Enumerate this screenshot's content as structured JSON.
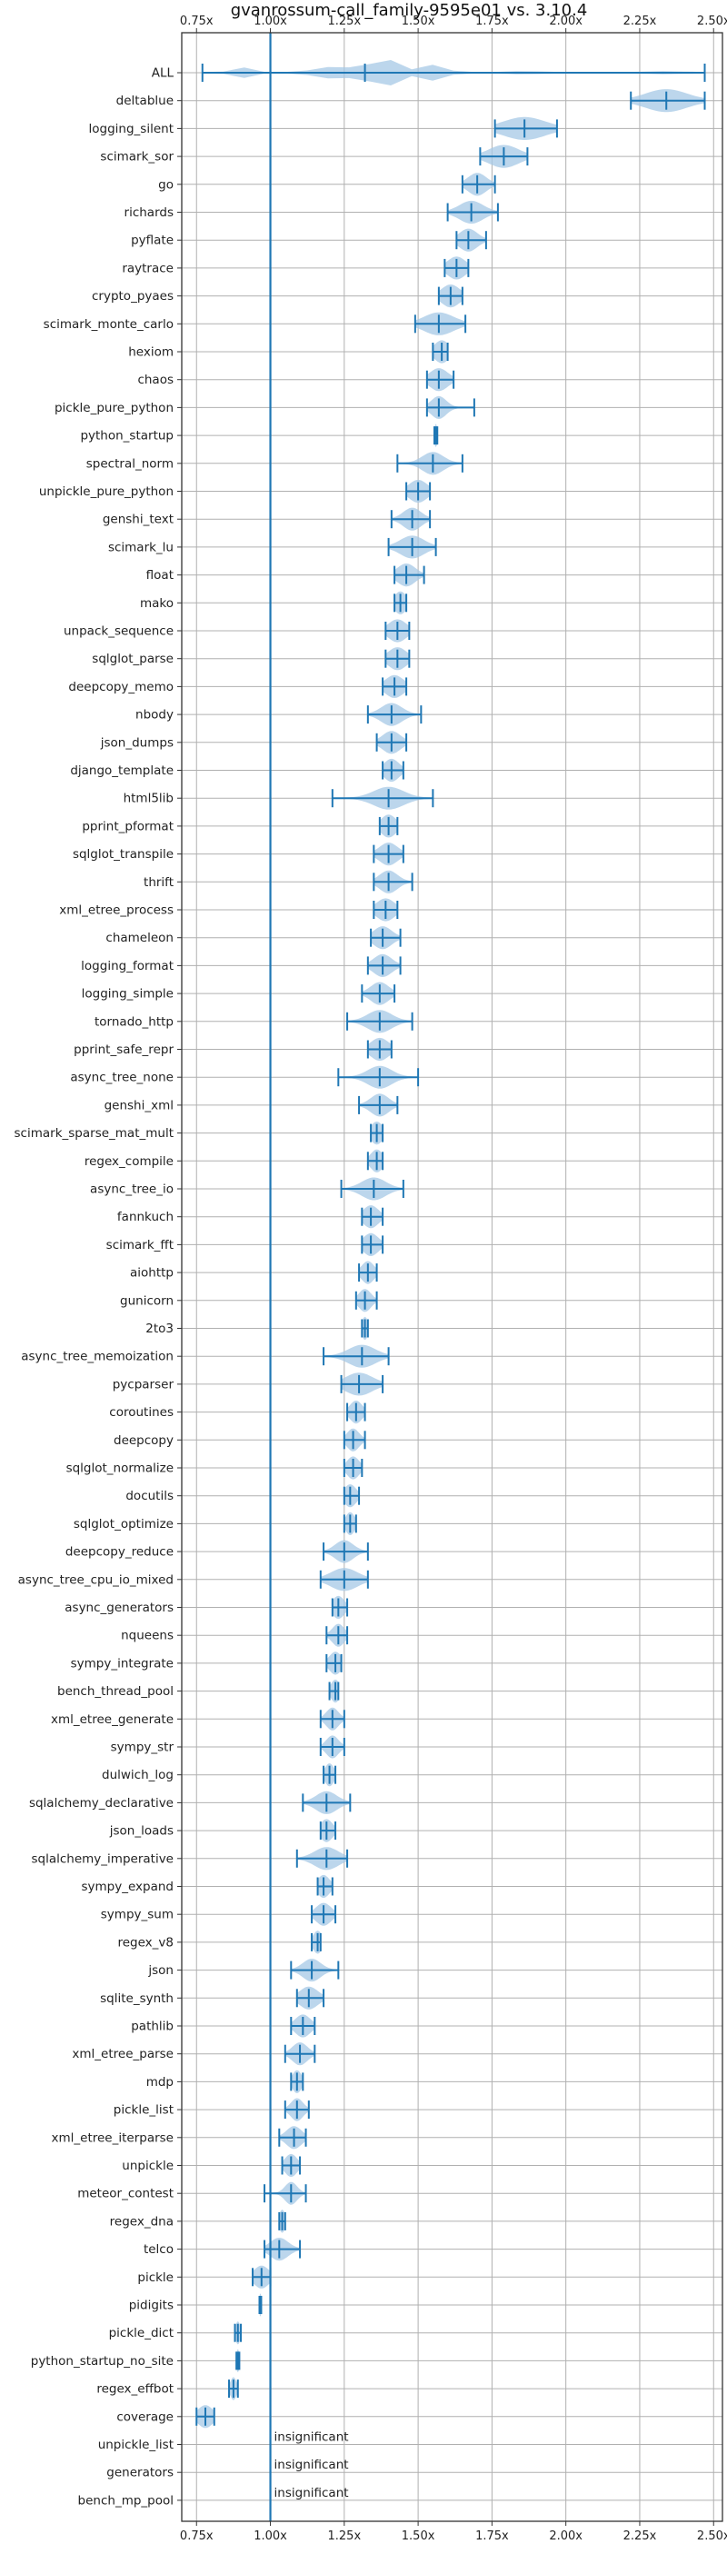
{
  "chart_data": {
    "type": "violin",
    "title": "gvanrossum-call_family-9595e01 vs. 3.10.4",
    "xlim": [
      0.7,
      2.53
    ],
    "xticks": [
      0.75,
      1.0,
      1.25,
      1.5,
      1.75,
      2.0,
      2.25,
      2.5
    ],
    "xtick_labels": [
      "0.75x",
      "1.00x",
      "1.25x",
      "1.50x",
      "1.75x",
      "2.00x",
      "2.25x",
      "2.50x"
    ],
    "reference_line": 1.0,
    "grid": true,
    "colors": {
      "line": "#1f77b4",
      "body": "#a6c8e6",
      "grid": "#b0b0b0",
      "axis": "#333333"
    },
    "insignificant_label": "insignificant",
    "benchmarks": [
      {
        "name": "ALL",
        "min": 0.77,
        "median": 1.32,
        "max": 2.47,
        "spread": 0.03,
        "kind": "all"
      },
      {
        "name": "deltablue",
        "min": 2.22,
        "median": 2.34,
        "max": 2.47,
        "spread": 0.07
      },
      {
        "name": "logging_silent",
        "min": 1.76,
        "median": 1.86,
        "max": 1.97,
        "spread": 0.07
      },
      {
        "name": "scimark_sor",
        "min": 1.71,
        "median": 1.79,
        "max": 1.87,
        "spread": 0.05
      },
      {
        "name": "go",
        "min": 1.65,
        "median": 1.7,
        "max": 1.76,
        "spread": 0.03
      },
      {
        "name": "richards",
        "min": 1.6,
        "median": 1.68,
        "max": 1.77,
        "spread": 0.04
      },
      {
        "name": "pyflate",
        "min": 1.63,
        "median": 1.67,
        "max": 1.73,
        "spread": 0.03
      },
      {
        "name": "raytrace",
        "min": 1.59,
        "median": 1.63,
        "max": 1.67,
        "spread": 0.03
      },
      {
        "name": "crypto_pyaes",
        "min": 1.57,
        "median": 1.61,
        "max": 1.65,
        "spread": 0.03
      },
      {
        "name": "scimark_monte_carlo",
        "min": 1.49,
        "median": 1.57,
        "max": 1.66,
        "spread": 0.05
      },
      {
        "name": "hexiom",
        "min": 1.55,
        "median": 1.58,
        "max": 1.6,
        "spread": 0.025
      },
      {
        "name": "chaos",
        "min": 1.53,
        "median": 1.57,
        "max": 1.62,
        "spread": 0.03
      },
      {
        "name": "pickle_pure_python",
        "min": 1.53,
        "median": 1.57,
        "max": 1.69,
        "spread": 0.025
      },
      {
        "name": "python_startup",
        "min": 1.555,
        "median": 1.56,
        "max": 1.565,
        "spread": 0.005
      },
      {
        "name": "spectral_norm",
        "min": 1.43,
        "median": 1.55,
        "max": 1.65,
        "spread": 0.035
      },
      {
        "name": "unpickle_pure_python",
        "min": 1.46,
        "median": 1.5,
        "max": 1.54,
        "spread": 0.03
      },
      {
        "name": "genshi_text",
        "min": 1.41,
        "median": 1.48,
        "max": 1.54,
        "spread": 0.03
      },
      {
        "name": "scimark_lu",
        "min": 1.4,
        "median": 1.48,
        "max": 1.56,
        "spread": 0.04
      },
      {
        "name": "float",
        "min": 1.42,
        "median": 1.46,
        "max": 1.52,
        "spread": 0.03
      },
      {
        "name": "mako",
        "min": 1.42,
        "median": 1.44,
        "max": 1.46,
        "spread": 0.02
      },
      {
        "name": "unpack_sequence",
        "min": 1.39,
        "median": 1.43,
        "max": 1.47,
        "spread": 0.03
      },
      {
        "name": "sqlglot_parse",
        "min": 1.39,
        "median": 1.43,
        "max": 1.47,
        "spread": 0.03
      },
      {
        "name": "deepcopy_memo",
        "min": 1.38,
        "median": 1.42,
        "max": 1.46,
        "spread": 0.03
      },
      {
        "name": "nbody",
        "min": 1.33,
        "median": 1.41,
        "max": 1.51,
        "spread": 0.035
      },
      {
        "name": "json_dumps",
        "min": 1.36,
        "median": 1.41,
        "max": 1.46,
        "spread": 0.03
      },
      {
        "name": "django_template",
        "min": 1.38,
        "median": 1.41,
        "max": 1.45,
        "spread": 0.025
      },
      {
        "name": "html5lib",
        "min": 1.21,
        "median": 1.4,
        "max": 1.55,
        "spread": 0.05
      },
      {
        "name": "pprint_pformat",
        "min": 1.37,
        "median": 1.4,
        "max": 1.43,
        "spread": 0.025
      },
      {
        "name": "sqlglot_transpile",
        "min": 1.35,
        "median": 1.4,
        "max": 1.45,
        "spread": 0.03
      },
      {
        "name": "thrift",
        "min": 1.35,
        "median": 1.4,
        "max": 1.48,
        "spread": 0.03
      },
      {
        "name": "xml_etree_process",
        "min": 1.35,
        "median": 1.39,
        "max": 1.43,
        "spread": 0.03
      },
      {
        "name": "chameleon",
        "min": 1.34,
        "median": 1.38,
        "max": 1.44,
        "spread": 0.03
      },
      {
        "name": "logging_format",
        "min": 1.33,
        "median": 1.38,
        "max": 1.44,
        "spread": 0.03
      },
      {
        "name": "logging_simple",
        "min": 1.31,
        "median": 1.37,
        "max": 1.42,
        "spread": 0.03
      },
      {
        "name": "tornado_http",
        "min": 1.26,
        "median": 1.37,
        "max": 1.48,
        "spread": 0.04
      },
      {
        "name": "pprint_safe_repr",
        "min": 1.33,
        "median": 1.37,
        "max": 1.41,
        "spread": 0.03
      },
      {
        "name": "async_tree_none",
        "min": 1.23,
        "median": 1.37,
        "max": 1.5,
        "spread": 0.04
      },
      {
        "name": "genshi_xml",
        "min": 1.3,
        "median": 1.37,
        "max": 1.43,
        "spread": 0.03
      },
      {
        "name": "scimark_sparse_mat_mult",
        "min": 1.34,
        "median": 1.36,
        "max": 1.38,
        "spread": 0.02
      },
      {
        "name": "regex_compile",
        "min": 1.33,
        "median": 1.36,
        "max": 1.38,
        "spread": 0.02
      },
      {
        "name": "async_tree_io",
        "min": 1.24,
        "median": 1.35,
        "max": 1.45,
        "spread": 0.04
      },
      {
        "name": "fannkuch",
        "min": 1.31,
        "median": 1.34,
        "max": 1.38,
        "spread": 0.025
      },
      {
        "name": "scimark_fft",
        "min": 1.31,
        "median": 1.34,
        "max": 1.38,
        "spread": 0.025
      },
      {
        "name": "aiohttp",
        "min": 1.3,
        "median": 1.33,
        "max": 1.36,
        "spread": 0.02
      },
      {
        "name": "gunicorn",
        "min": 1.29,
        "median": 1.32,
        "max": 1.36,
        "spread": 0.02
      },
      {
        "name": "2to3",
        "min": 1.31,
        "median": 1.32,
        "max": 1.33,
        "spread": 0.01
      },
      {
        "name": "async_tree_memoization",
        "min": 1.18,
        "median": 1.31,
        "max": 1.4,
        "spread": 0.045
      },
      {
        "name": "pycparser",
        "min": 1.24,
        "median": 1.3,
        "max": 1.38,
        "spread": 0.045
      },
      {
        "name": "coroutines",
        "min": 1.26,
        "median": 1.29,
        "max": 1.32,
        "spread": 0.02
      },
      {
        "name": "deepcopy",
        "min": 1.25,
        "median": 1.28,
        "max": 1.32,
        "spread": 0.02
      },
      {
        "name": "sqlglot_normalize",
        "min": 1.25,
        "median": 1.28,
        "max": 1.31,
        "spread": 0.02
      },
      {
        "name": "docutils",
        "min": 1.25,
        "median": 1.27,
        "max": 1.3,
        "spread": 0.02
      },
      {
        "name": "sqlglot_optimize",
        "min": 1.25,
        "median": 1.27,
        "max": 1.29,
        "spread": 0.015
      },
      {
        "name": "deepcopy_reduce",
        "min": 1.18,
        "median": 1.25,
        "max": 1.33,
        "spread": 0.03
      },
      {
        "name": "async_tree_cpu_io_mixed",
        "min": 1.17,
        "median": 1.25,
        "max": 1.33,
        "spread": 0.045
      },
      {
        "name": "async_generators",
        "min": 1.21,
        "median": 1.23,
        "max": 1.26,
        "spread": 0.02
      },
      {
        "name": "nqueens",
        "min": 1.19,
        "median": 1.23,
        "max": 1.26,
        "spread": 0.02
      },
      {
        "name": "sympy_integrate",
        "min": 1.19,
        "median": 1.22,
        "max": 1.24,
        "spread": 0.02
      },
      {
        "name": "bench_thread_pool",
        "min": 1.2,
        "median": 1.22,
        "max": 1.23,
        "spread": 0.015
      },
      {
        "name": "xml_etree_generate",
        "min": 1.17,
        "median": 1.21,
        "max": 1.25,
        "spread": 0.02
      },
      {
        "name": "sympy_str",
        "min": 1.17,
        "median": 1.21,
        "max": 1.25,
        "spread": 0.02
      },
      {
        "name": "dulwich_log",
        "min": 1.18,
        "median": 1.2,
        "max": 1.22,
        "spread": 0.015
      },
      {
        "name": "sqlalchemy_declarative",
        "min": 1.11,
        "median": 1.19,
        "max": 1.27,
        "spread": 0.035
      },
      {
        "name": "json_loads",
        "min": 1.17,
        "median": 1.19,
        "max": 1.22,
        "spread": 0.02
      },
      {
        "name": "sqlalchemy_imperative",
        "min": 1.09,
        "median": 1.19,
        "max": 1.26,
        "spread": 0.04
      },
      {
        "name": "sympy_expand",
        "min": 1.16,
        "median": 1.18,
        "max": 1.21,
        "spread": 0.02
      },
      {
        "name": "sympy_sum",
        "min": 1.14,
        "median": 1.18,
        "max": 1.22,
        "spread": 0.025
      },
      {
        "name": "regex_v8",
        "min": 1.14,
        "median": 1.16,
        "max": 1.17,
        "spread": 0.015
      },
      {
        "name": "json",
        "min": 1.07,
        "median": 1.14,
        "max": 1.23,
        "spread": 0.03
      },
      {
        "name": "sqlite_synth",
        "min": 1.09,
        "median": 1.13,
        "max": 1.18,
        "spread": 0.03
      },
      {
        "name": "pathlib",
        "min": 1.07,
        "median": 1.11,
        "max": 1.15,
        "spread": 0.025
      },
      {
        "name": "xml_etree_parse",
        "min": 1.05,
        "median": 1.1,
        "max": 1.15,
        "spread": 0.025
      },
      {
        "name": "mdp",
        "min": 1.07,
        "median": 1.09,
        "max": 1.11,
        "spread": 0.015
      },
      {
        "name": "pickle_list",
        "min": 1.05,
        "median": 1.09,
        "max": 1.13,
        "spread": 0.02
      },
      {
        "name": "xml_etree_iterparse",
        "min": 1.03,
        "median": 1.08,
        "max": 1.12,
        "spread": 0.025
      },
      {
        "name": "unpickle",
        "min": 1.04,
        "median": 1.07,
        "max": 1.1,
        "spread": 0.02
      },
      {
        "name": "meteor_contest",
        "min": 0.98,
        "median": 1.07,
        "max": 1.12,
        "spread": 0.02
      },
      {
        "name": "regex_dna",
        "min": 1.03,
        "median": 1.04,
        "max": 1.05,
        "spread": 0.01
      },
      {
        "name": "telco",
        "min": 0.98,
        "median": 1.03,
        "max": 1.1,
        "spread": 0.03
      },
      {
        "name": "pickle",
        "min": 0.94,
        "median": 0.97,
        "max": 1.0,
        "spread": 0.025
      },
      {
        "name": "pidigits",
        "min": 0.963,
        "median": 0.966,
        "max": 0.969,
        "spread": 0.004
      },
      {
        "name": "pickle_dict",
        "min": 0.88,
        "median": 0.89,
        "max": 0.9,
        "spread": 0.008
      },
      {
        "name": "python_startup_no_site",
        "min": 0.885,
        "median": 0.89,
        "max": 0.895,
        "spread": 0.005
      },
      {
        "name": "regex_effbot",
        "min": 0.86,
        "median": 0.875,
        "max": 0.89,
        "spread": 0.01
      },
      {
        "name": "coverage",
        "min": 0.75,
        "median": 0.78,
        "max": 0.81,
        "spread": 0.025
      },
      {
        "name": "unpickle_list",
        "insignificant": true
      },
      {
        "name": "generators",
        "insignificant": true
      },
      {
        "name": "bench_mp_pool",
        "insignificant": true
      }
    ]
  }
}
